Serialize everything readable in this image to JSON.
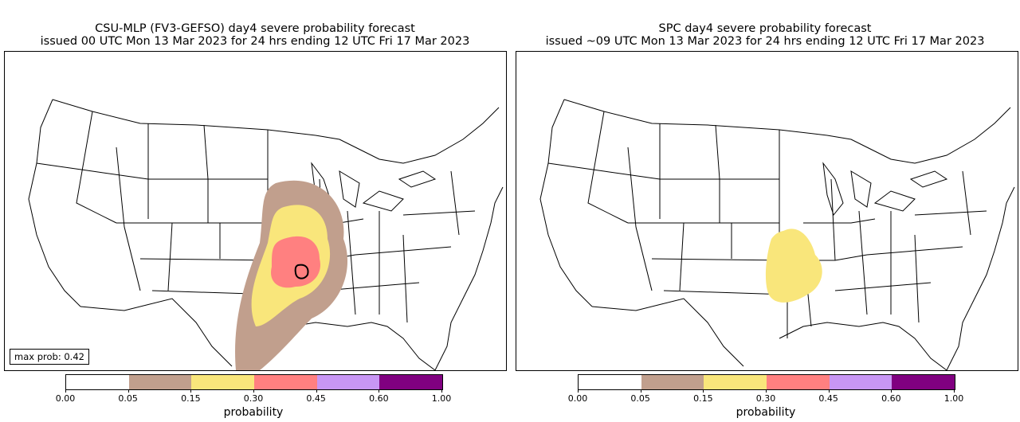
{
  "left_panel": {
    "title_line1": "CSU-MLP (FV3-GEFSO) day4 severe probability forecast",
    "title_line2": "issued 00 UTC Mon 13 Mar 2023 for 24 hrs ending 12 UTC Fri 17 Mar 2023",
    "max_prob_label": "max prob: 0.42"
  },
  "right_panel": {
    "title_line1": "SPC day4 severe probability forecast",
    "title_line2": "issued ~09 UTC Mon 13 Mar 2023 for 24 hrs ending 12 UTC Fri 17 Mar 2023"
  },
  "colorbar": {
    "label": "probability",
    "ticks": [
      "0.00",
      "0.05",
      "0.15",
      "0.30",
      "0.45",
      "0.60",
      "1.00"
    ],
    "colors": [
      "#ffffff",
      "#c19f8d",
      "#f9e67b",
      "#ff8080",
      "#c896f4",
      "#800080"
    ]
  },
  "probability_areas": {
    "csu": [
      "0.05",
      "0.15",
      "0.30"
    ],
    "spc": [
      "0.15"
    ]
  }
}
